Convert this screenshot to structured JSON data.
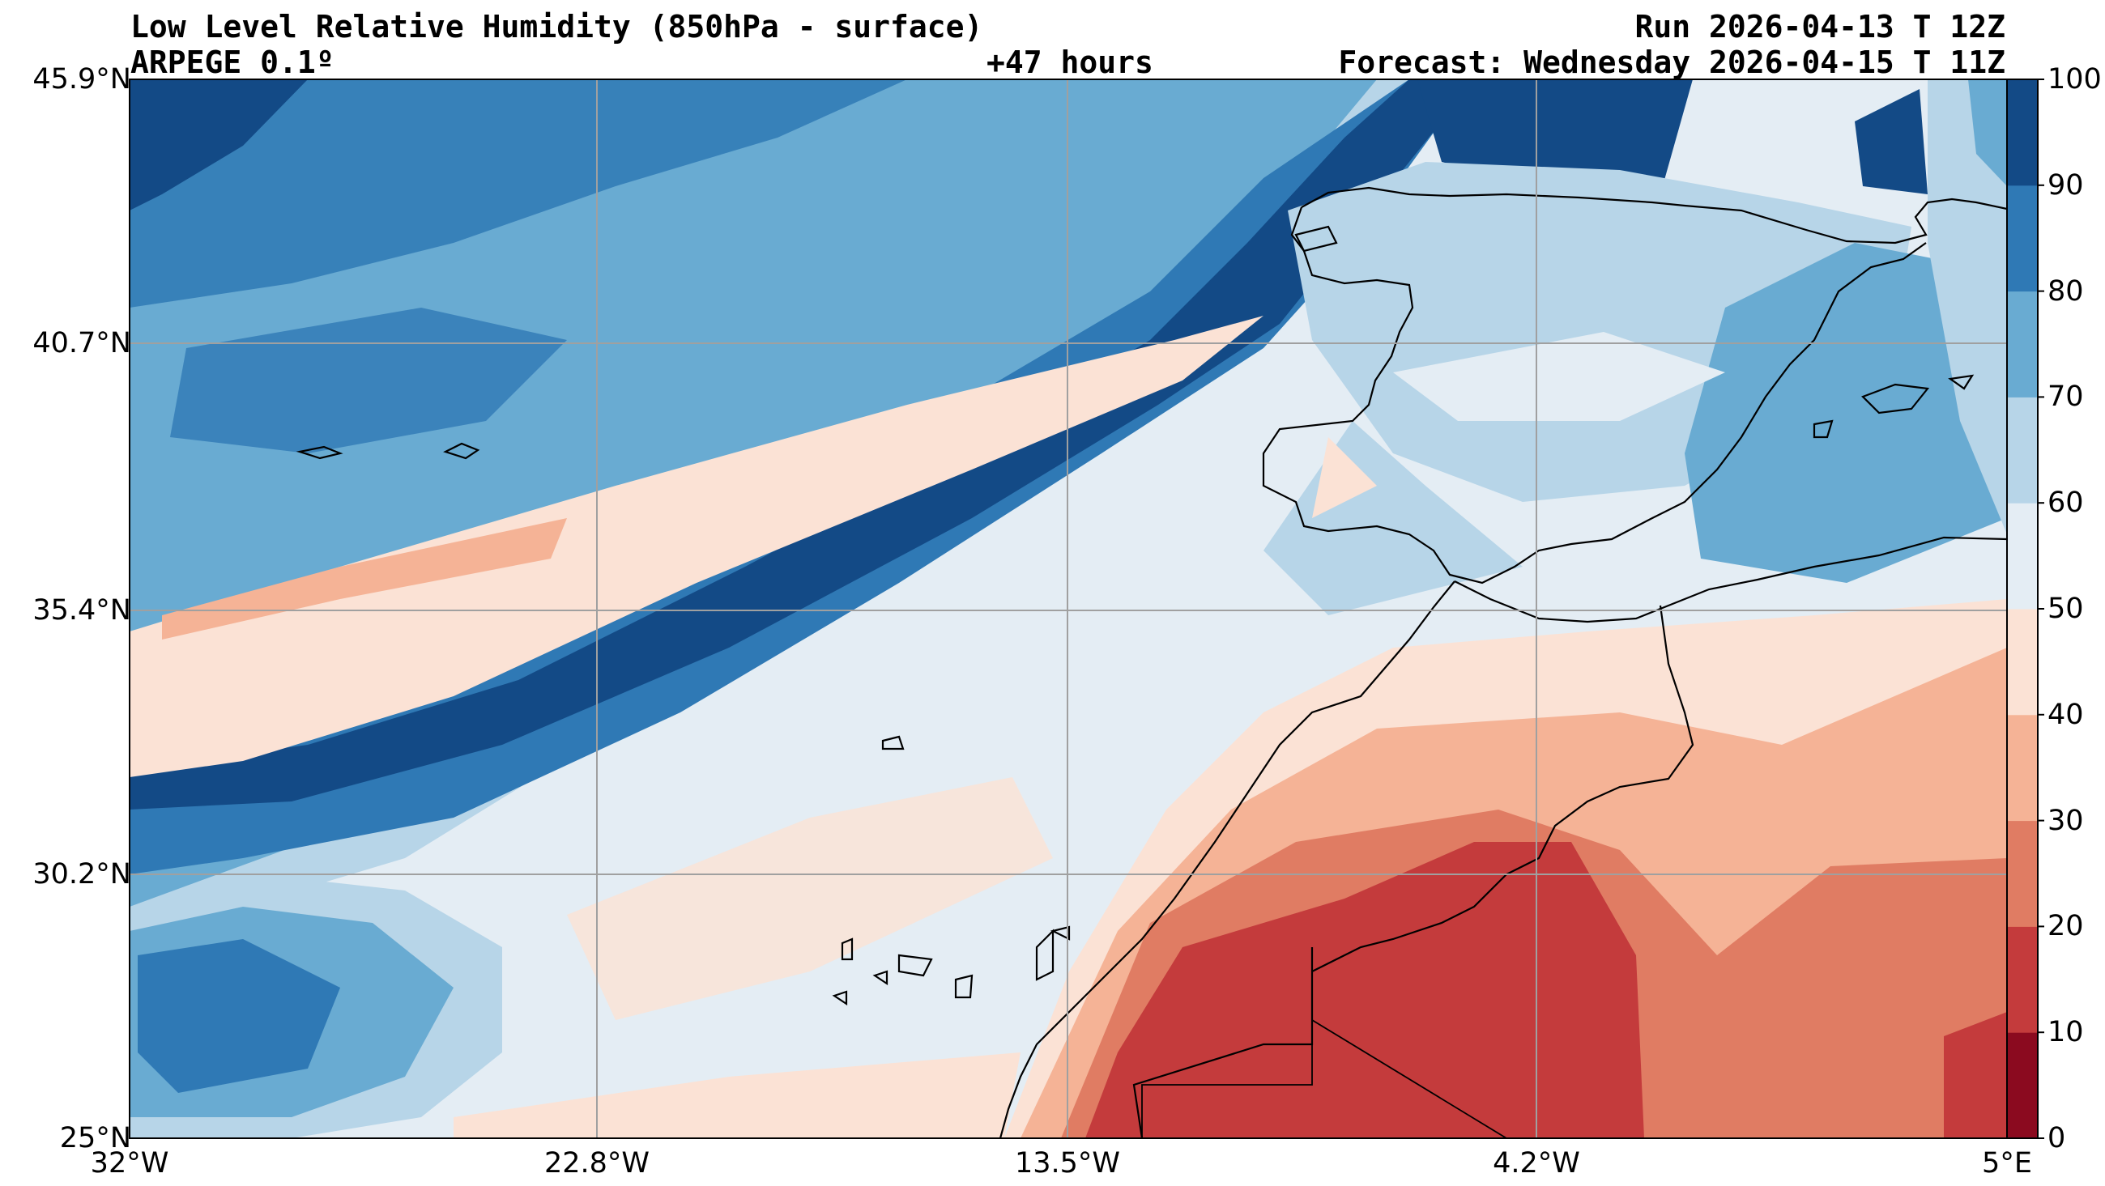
{
  "header": {
    "title": "Low Level Relative Humidity (850hPa - surface)",
    "model": "ARPEGE 0.1º",
    "lead": "+47 hours",
    "run": "Run 2026-04-13 T 12Z",
    "forecast": "Forecast: Wednesday 2026-04-15 T 11Z"
  },
  "axes": {
    "lat_labels": [
      "45.9°N",
      "40.7°N",
      "35.4°N",
      "30.2°N",
      "25°N"
    ],
    "lon_labels": [
      "32°W",
      "22.8°W",
      "13.5°W",
      "4.2°W",
      "5°E"
    ]
  },
  "colorbar": {
    "ticks": [
      "100",
      "90",
      "80",
      "70",
      "60",
      "50",
      "40",
      "30",
      "20",
      "10",
      "0"
    ],
    "colors": [
      "#67001f",
      "#b2182b",
      "#d6604d",
      "#f4a582",
      "#fddbc7",
      "#f7f7f7",
      "#d1e5f0",
      "#92c5de",
      "#4393c3",
      "#2166ac",
      "#053061"
    ],
    "palette_actual": [
      "#8b0a1f",
      "#c43b3c",
      "#e07c63",
      "#f5b396",
      "#fbe2d5",
      "#e4edf4",
      "#b7d5e8",
      "#69abd2",
      "#2f79b5",
      "#134a86"
    ]
  }
}
